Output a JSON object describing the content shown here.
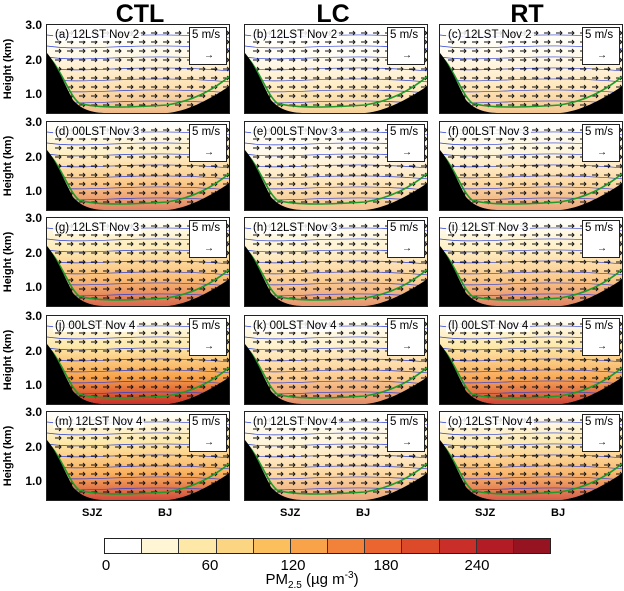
{
  "columns": [
    {
      "title": "CTL",
      "key": "ctl"
    },
    {
      "title": "LC",
      "key": "lc"
    },
    {
      "title": "RT",
      "key": "rt"
    }
  ],
  "y_axis": {
    "label": "Height (km)",
    "ticks": [
      "3.0",
      "2.0",
      "1.0"
    ]
  },
  "rows": [
    {
      "panels": [
        "(a) 12LST Nov 2",
        "(b) 12LST Nov 2",
        "(c) 12LST Nov 2"
      ],
      "intensity": [
        0.25,
        0.12,
        0.18
      ]
    },
    {
      "panels": [
        "(d) 00LST Nov 3",
        "(e) 00LST Nov 3",
        "(f) 00LST Nov 3"
      ],
      "intensity": [
        0.55,
        0.2,
        0.35
      ]
    },
    {
      "panels": [
        "(g) 12LST Nov 3",
        "(h) 12LST Nov 3",
        "(i) 12LST Nov 3"
      ],
      "intensity": [
        0.7,
        0.45,
        0.55
      ]
    },
    {
      "panels": [
        "(j) 00LST Nov 4",
        "(k) 00LST Nov 4",
        "(l) 00LST Nov 4"
      ],
      "intensity": [
        1.0,
        0.5,
        0.9
      ]
    },
    {
      "panels": [
        "(m) 12LST Nov 4",
        "(n) 12LST Nov 4",
        "(o) 12LST Nov 4"
      ],
      "intensity": [
        0.85,
        0.35,
        0.75
      ]
    }
  ],
  "scale_label": "5 m/s",
  "x_labels": [
    "SJZ",
    "BJ"
  ],
  "colorbar": {
    "ticks": [
      "0",
      "60",
      "120",
      "180",
      "240"
    ],
    "title_main": "PM",
    "title_sub": "2.5",
    "title_unit": " (µg m",
    "title_exp": "-3",
    "title_close": ")",
    "colors": [
      "#ffffff",
      "#fff6d5",
      "#fde8a8",
      "#fcd583",
      "#fbbf5e",
      "#f8a24a",
      "#f2823a",
      "#ea6530",
      "#dd4a2a",
      "#c92f28",
      "#b31b25",
      "#961322"
    ]
  }
}
